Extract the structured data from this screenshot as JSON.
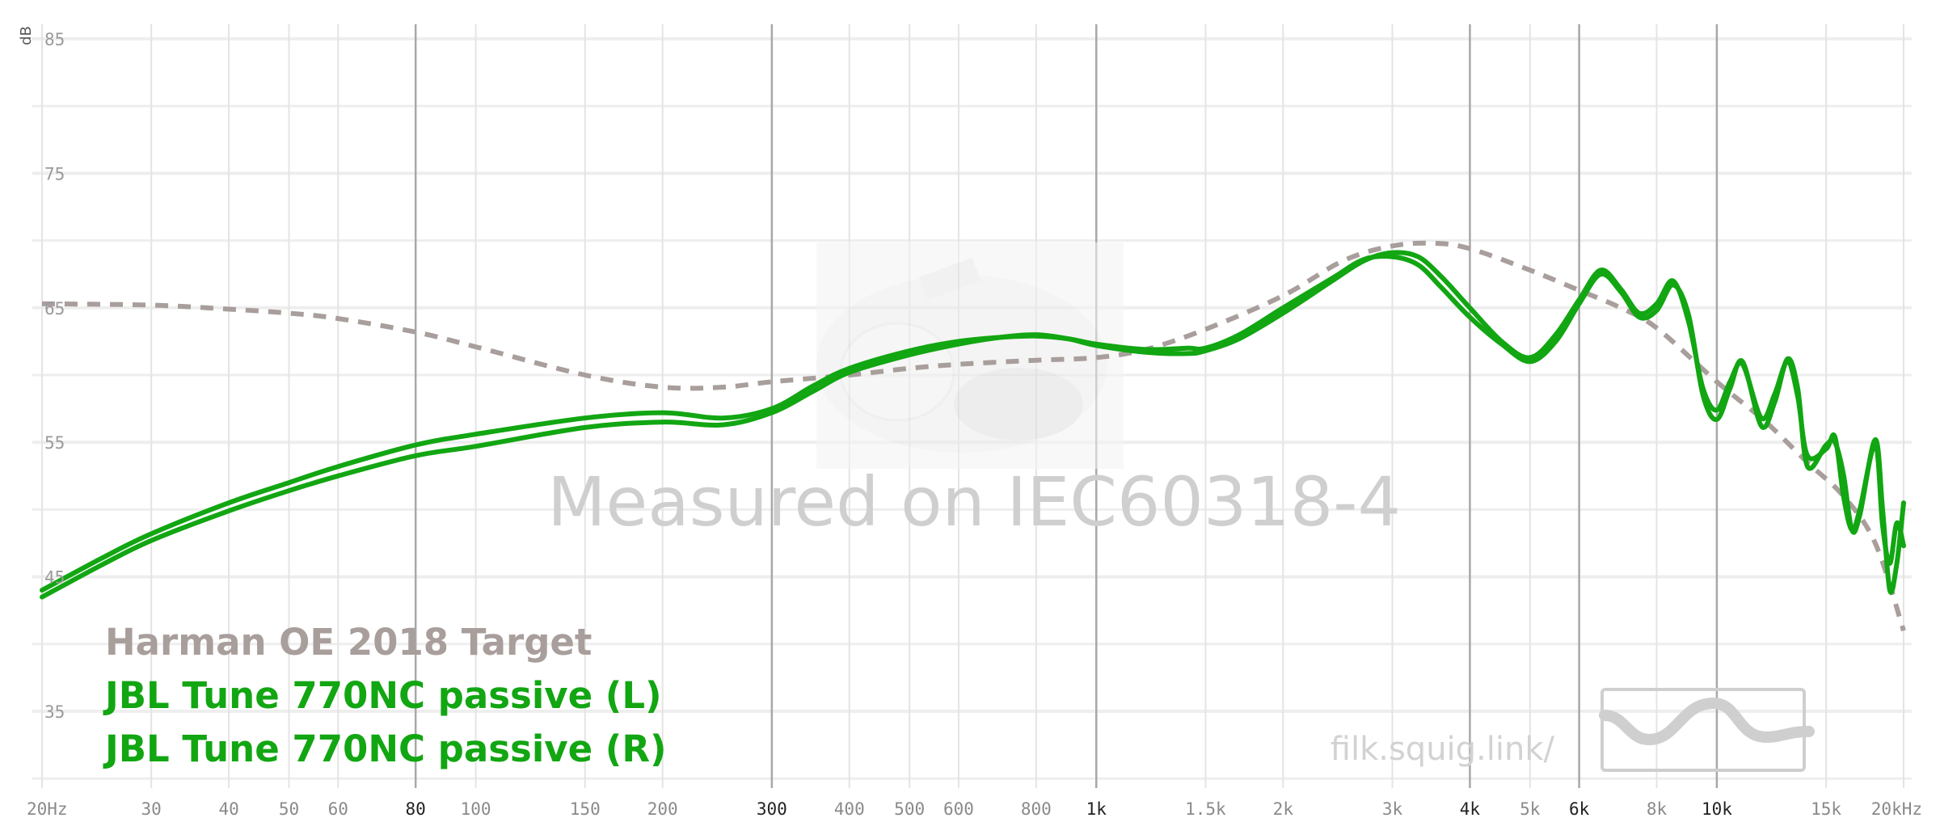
{
  "chart_data": {
    "type": "line",
    "title": "",
    "ylabel": "dB",
    "xlabel": "",
    "x_scale": "log",
    "xlim": [
      20,
      20000
    ],
    "ylim": [
      30,
      86
    ],
    "grid": true,
    "legend_position": "bottom-left",
    "y_ticks": [
      {
        "value": 85,
        "label": "85"
      },
      {
        "value": 75,
        "label": "75"
      },
      {
        "value": 65,
        "label": "65"
      },
      {
        "value": 55,
        "label": "55"
      },
      {
        "value": 45,
        "label": "45"
      },
      {
        "value": 35,
        "label": "35"
      }
    ],
    "x_ticks": [
      {
        "value": 20,
        "label": "20Hz",
        "major": false
      },
      {
        "value": 30,
        "label": "30",
        "major": false
      },
      {
        "value": 40,
        "label": "40",
        "major": false
      },
      {
        "value": 50,
        "label": "50",
        "major": false
      },
      {
        "value": 60,
        "label": "60",
        "major": false
      },
      {
        "value": 80,
        "label": "80",
        "major": true
      },
      {
        "value": 100,
        "label": "100",
        "major": false
      },
      {
        "value": 150,
        "label": "150",
        "major": false
      },
      {
        "value": 200,
        "label": "200",
        "major": false
      },
      {
        "value": 300,
        "label": "300",
        "major": true
      },
      {
        "value": 400,
        "label": "400",
        "major": false
      },
      {
        "value": 500,
        "label": "500",
        "major": false
      },
      {
        "value": 600,
        "label": "600",
        "major": false
      },
      {
        "value": 800,
        "label": "800",
        "major": false
      },
      {
        "value": 1000,
        "label": "1k",
        "major": true
      },
      {
        "value": 1500,
        "label": "1.5k",
        "major": false
      },
      {
        "value": 2000,
        "label": "2k",
        "major": false
      },
      {
        "value": 3000,
        "label": "3k",
        "major": false
      },
      {
        "value": 4000,
        "label": "4k",
        "major": true
      },
      {
        "value": 5000,
        "label": "5k",
        "major": false
      },
      {
        "value": 6000,
        "label": "6k",
        "major": true
      },
      {
        "value": 8000,
        "label": "8k",
        "major": false
      },
      {
        "value": 10000,
        "label": "10k",
        "major": true
      },
      {
        "value": 15000,
        "label": "15k",
        "major": false
      },
      {
        "value": 20000,
        "label": "20kHz",
        "major": false
      }
    ],
    "series": [
      {
        "name": "Harman OE 2018 Target",
        "color": "#a89e9b",
        "dashed": true,
        "points": [
          [
            20,
            65.3
          ],
          [
            30,
            65.2
          ],
          [
            40,
            64.9
          ],
          [
            50,
            64.6
          ],
          [
            60,
            64.2
          ],
          [
            80,
            63.2
          ],
          [
            100,
            62.1
          ],
          [
            150,
            60.0
          ],
          [
            200,
            59.1
          ],
          [
            250,
            59.1
          ],
          [
            300,
            59.5
          ],
          [
            400,
            60.0
          ],
          [
            500,
            60.5
          ],
          [
            600,
            60.8
          ],
          [
            800,
            61.1
          ],
          [
            1000,
            61.3
          ],
          [
            1200,
            61.9
          ],
          [
            1500,
            63.4
          ],
          [
            2000,
            65.9
          ],
          [
            2500,
            68.5
          ],
          [
            3000,
            69.6
          ],
          [
            3500,
            69.8
          ],
          [
            4000,
            69.4
          ],
          [
            5000,
            67.8
          ],
          [
            6000,
            66.3
          ],
          [
            7000,
            65.0
          ],
          [
            8000,
            63.5
          ],
          [
            10000,
            59.5
          ],
          [
            12000,
            56.5
          ],
          [
            14000,
            53.5
          ],
          [
            16000,
            51.0
          ],
          [
            18000,
            47.5
          ],
          [
            20000,
            41.0
          ]
        ]
      },
      {
        "name": "JBL Tune 770NC passive (L)",
        "color": "#12a612",
        "dashed": false,
        "points": [
          [
            20,
            44.0
          ],
          [
            25,
            46.4
          ],
          [
            30,
            48.2
          ],
          [
            40,
            50.5
          ],
          [
            50,
            52.0
          ],
          [
            60,
            53.2
          ],
          [
            80,
            54.8
          ],
          [
            100,
            55.6
          ],
          [
            150,
            56.8
          ],
          [
            200,
            57.2
          ],
          [
            250,
            56.8
          ],
          [
            300,
            57.5
          ],
          [
            350,
            59.2
          ],
          [
            400,
            60.5
          ],
          [
            500,
            61.8
          ],
          [
            600,
            62.5
          ],
          [
            700,
            62.8
          ],
          [
            800,
            62.9
          ],
          [
            900,
            62.7
          ],
          [
            1000,
            62.3
          ],
          [
            1200,
            61.9
          ],
          [
            1400,
            62.0
          ],
          [
            1500,
            62.0
          ],
          [
            1700,
            63.0
          ],
          [
            2000,
            65.0
          ],
          [
            2400,
            67.2
          ],
          [
            2700,
            68.6
          ],
          [
            3000,
            68.8
          ],
          [
            3300,
            68.2
          ],
          [
            3600,
            66.5
          ],
          [
            4000,
            64.3
          ],
          [
            4500,
            62.3
          ],
          [
            5000,
            61.0
          ],
          [
            5500,
            62.5
          ],
          [
            6000,
            65.3
          ],
          [
            6500,
            67.5
          ],
          [
            7000,
            66.2
          ],
          [
            7500,
            64.3
          ],
          [
            8000,
            64.8
          ],
          [
            8500,
            66.7
          ],
          [
            9000,
            64.5
          ],
          [
            9500,
            58.5
          ],
          [
            10000,
            56.7
          ],
          [
            10500,
            59.0
          ],
          [
            11000,
            61.0
          ],
          [
            11800,
            56.2
          ],
          [
            12400,
            58.0
          ],
          [
            13000,
            61.2
          ],
          [
            13500,
            59.0
          ],
          [
            14000,
            53.2
          ],
          [
            15000,
            54.8
          ],
          [
            15500,
            55.0
          ],
          [
            16000,
            52.6
          ],
          [
            16500,
            48.5
          ],
          [
            17000,
            49.6
          ],
          [
            18000,
            55.2
          ],
          [
            18500,
            50.0
          ],
          [
            19000,
            44.0
          ],
          [
            19500,
            46.0
          ],
          [
            20000,
            50.5
          ]
        ]
      },
      {
        "name": "JBL Tune 770NC passive (R)",
        "color": "#12a612",
        "dashed": false,
        "points": [
          [
            20,
            43.5
          ],
          [
            25,
            45.9
          ],
          [
            30,
            47.7
          ],
          [
            40,
            49.9
          ],
          [
            50,
            51.4
          ],
          [
            60,
            52.5
          ],
          [
            80,
            54.0
          ],
          [
            100,
            54.7
          ],
          [
            150,
            56.1
          ],
          [
            200,
            56.5
          ],
          [
            250,
            56.3
          ],
          [
            300,
            57.2
          ],
          [
            350,
            58.8
          ],
          [
            400,
            60.2
          ],
          [
            500,
            61.5
          ],
          [
            600,
            62.3
          ],
          [
            700,
            62.8
          ],
          [
            800,
            63.0
          ],
          [
            900,
            62.7
          ],
          [
            1000,
            62.2
          ],
          [
            1200,
            61.7
          ],
          [
            1400,
            61.6
          ],
          [
            1500,
            61.8
          ],
          [
            1700,
            62.7
          ],
          [
            2000,
            64.6
          ],
          [
            2400,
            67.0
          ],
          [
            2700,
            68.5
          ],
          [
            3000,
            69.1
          ],
          [
            3300,
            68.8
          ],
          [
            3600,
            67.3
          ],
          [
            4000,
            65.0
          ],
          [
            4500,
            62.5
          ],
          [
            5000,
            61.3
          ],
          [
            5500,
            63.0
          ],
          [
            6000,
            65.6
          ],
          [
            6500,
            67.8
          ],
          [
            7000,
            66.4
          ],
          [
            7500,
            64.6
          ],
          [
            8000,
            65.3
          ],
          [
            8500,
            67.0
          ],
          [
            9000,
            64.0
          ],
          [
            9500,
            59.0
          ],
          [
            10000,
            57.4
          ],
          [
            10500,
            59.5
          ],
          [
            11000,
            60.8
          ],
          [
            11800,
            56.8
          ],
          [
            12400,
            58.6
          ],
          [
            13000,
            61.0
          ],
          [
            13500,
            58.4
          ],
          [
            14000,
            54.0
          ],
          [
            15000,
            54.5
          ],
          [
            15500,
            55.4
          ],
          [
            16000,
            51.0
          ],
          [
            16500,
            48.5
          ],
          [
            17000,
            50.0
          ],
          [
            18000,
            54.8
          ],
          [
            18500,
            48.8
          ],
          [
            19000,
            46.0
          ],
          [
            19500,
            49.0
          ],
          [
            20000,
            47.3
          ]
        ]
      }
    ],
    "annotations": [
      "Measured on IEC60318-4",
      "filk.squig.link/"
    ]
  },
  "colors": {
    "grid_major": "#a8a8a8",
    "grid_minor": "#e4e4e4",
    "grid_horizontal": "#eeeeee",
    "watermark_text": "#cfcfcf"
  },
  "watermark": {
    "text": "Measured on IEC60318-4",
    "site": "filk.squig.link/"
  },
  "legend": {
    "items": [
      {
        "label": "Harman OE 2018 Target",
        "color": "#a89e9b"
      },
      {
        "label": "JBL Tune 770NC passive (L)",
        "color": "#12a612"
      },
      {
        "label": "JBL Tune 770NC passive (R)",
        "color": "#12a612"
      }
    ]
  },
  "icons": {
    "logo": "squiglink-wave-logo-icon",
    "photo": "measurement-rig-photo"
  }
}
